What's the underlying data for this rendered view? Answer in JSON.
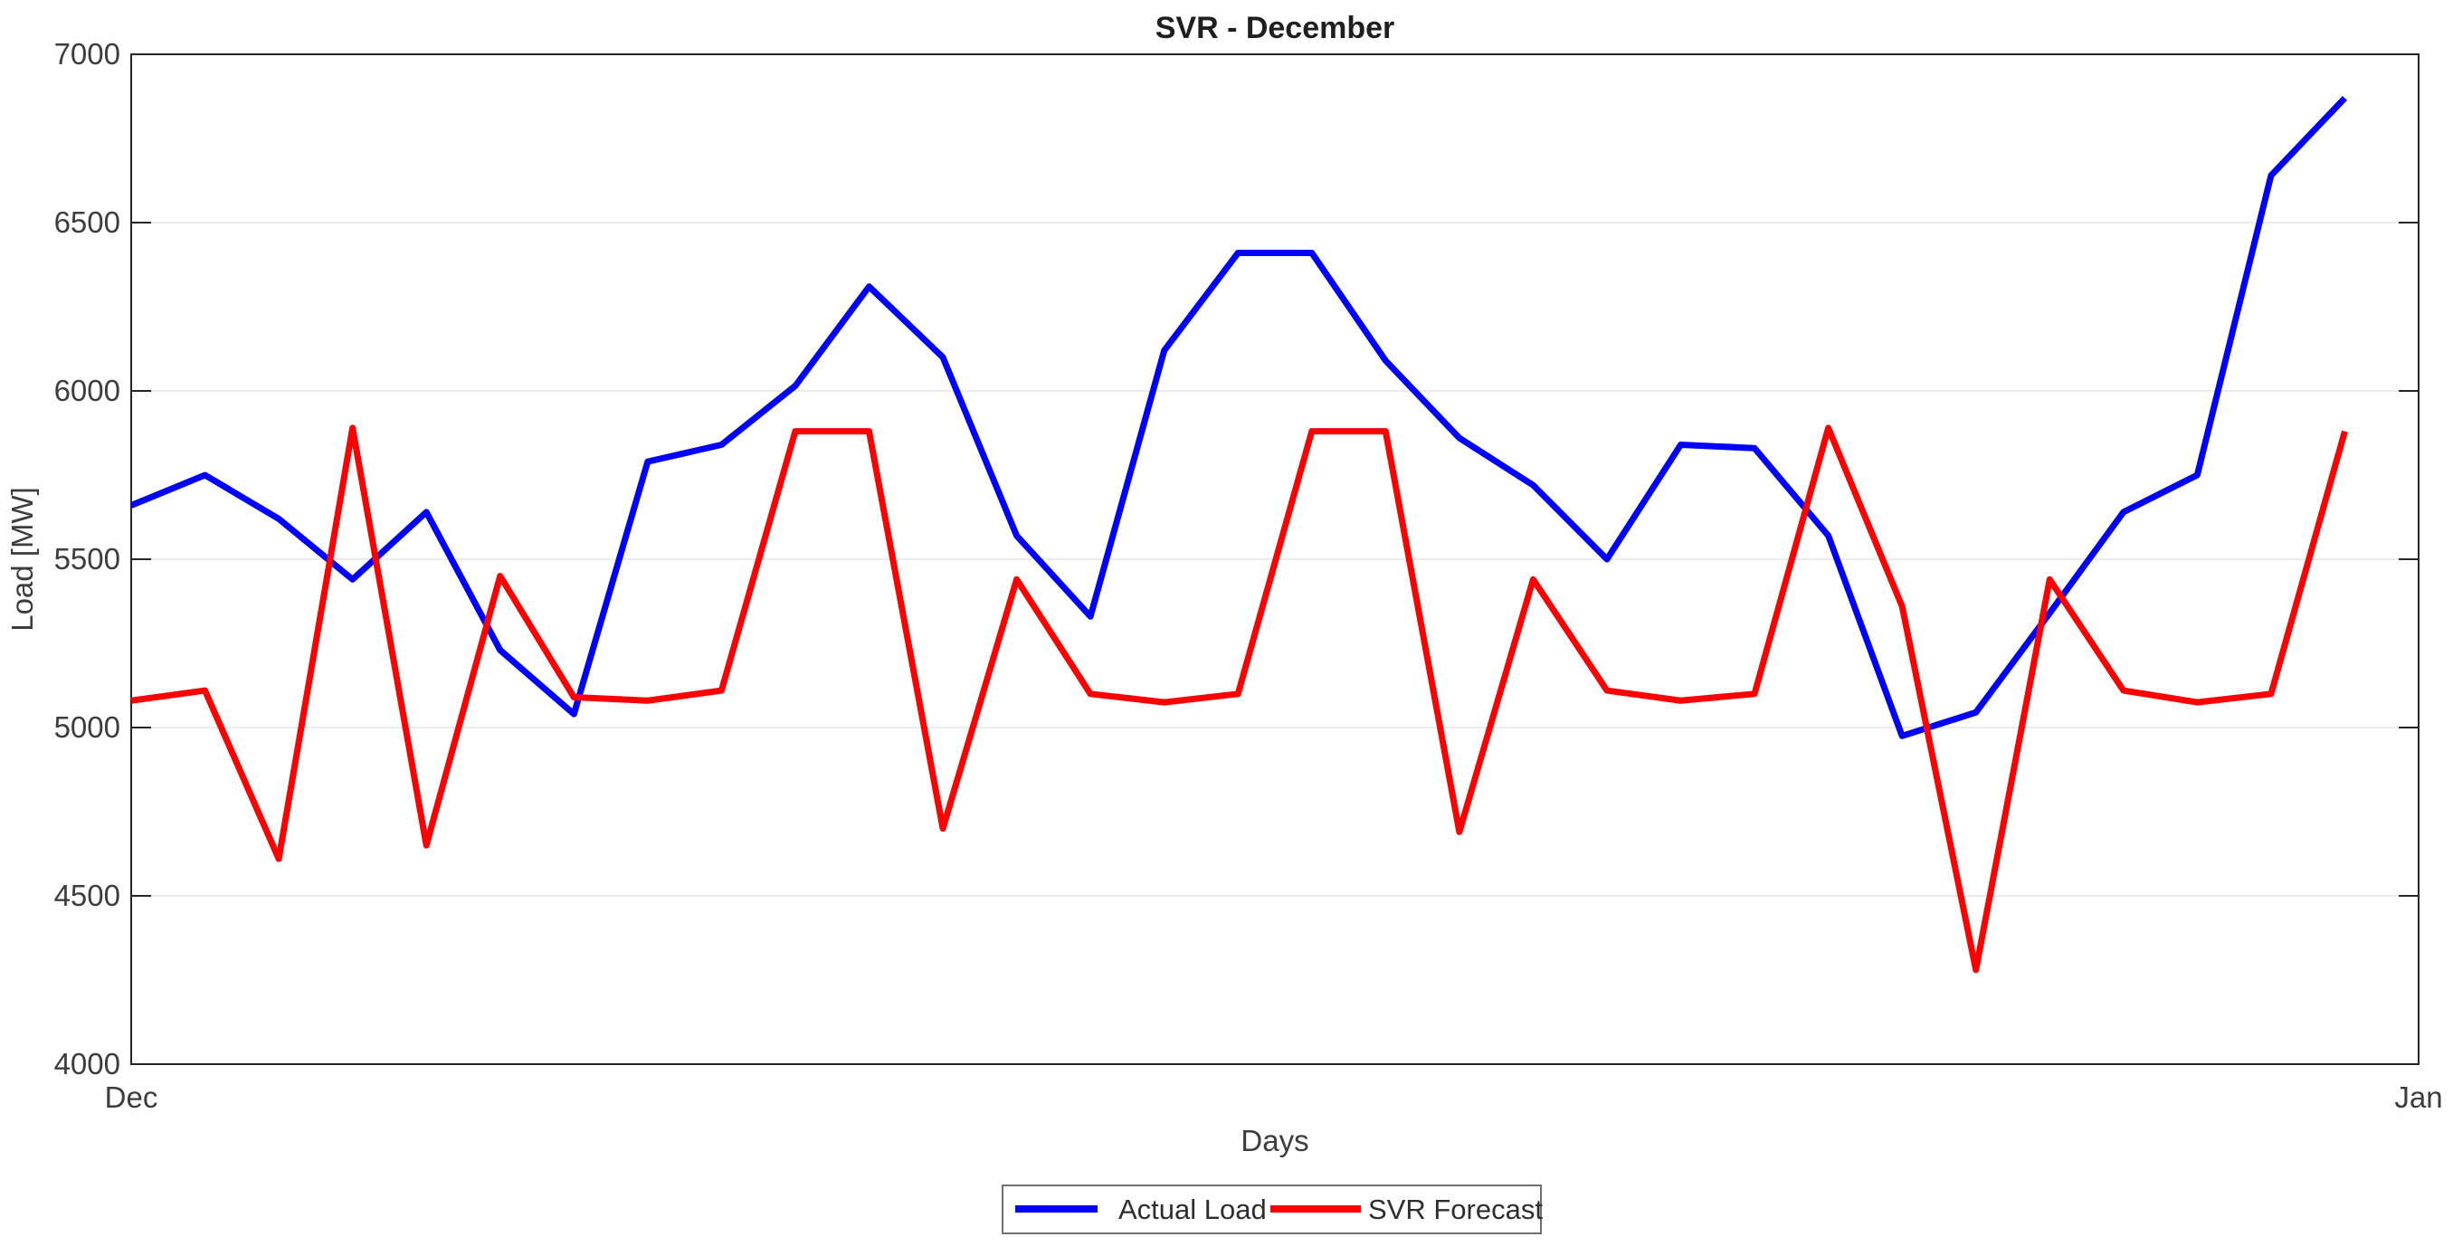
{
  "title": "SVR - December",
  "chart_data": {
    "type": "line",
    "title": "SVR - December",
    "xlabel": "Days",
    "ylabel": "Load [MW]",
    "ylim": [
      4000,
      7000
    ],
    "y_ticks": [
      4000,
      4500,
      5000,
      5500,
      6000,
      6500,
      7000
    ],
    "x_tick_labels": [
      {
        "label": "Dec",
        "day": 1
      },
      {
        "label": "Jan",
        "day": 32
      }
    ],
    "grid": "horizontal",
    "legend_position": "below-chart",
    "axis_color": "#262626",
    "grid_color": "#e6e6e6",
    "days": [
      1,
      2,
      3,
      4,
      5,
      6,
      7,
      8,
      9,
      10,
      11,
      12,
      13,
      14,
      15,
      16,
      17,
      18,
      19,
      20,
      21,
      22,
      23,
      24,
      25,
      26,
      27,
      28,
      29,
      30,
      31
    ],
    "series": [
      {
        "name": "Actual Load",
        "color": "#0000ff",
        "values": [
          5660,
          5750,
          5620,
          5440,
          5640,
          5230,
          5040,
          5790,
          5840,
          6015,
          6310,
          6100,
          5570,
          5330,
          6120,
          6410,
          6410,
          6090,
          5860,
          5720,
          5500,
          5840,
          5830,
          5570,
          4975,
          5045,
          5340,
          5640,
          5750,
          6640,
          6870
        ]
      },
      {
        "name": "SVR Forecast",
        "color": "#ff0000",
        "values": [
          5080,
          5110,
          4610,
          5890,
          4650,
          5450,
          5090,
          5080,
          5110,
          5880,
          5880,
          4700,
          5440,
          5100,
          5075,
          5100,
          5880,
          5880,
          4690,
          5440,
          5110,
          5080,
          5100,
          5890,
          5360,
          4280,
          5440,
          5110,
          5075,
          5100,
          5880
        ]
      }
    ]
  }
}
